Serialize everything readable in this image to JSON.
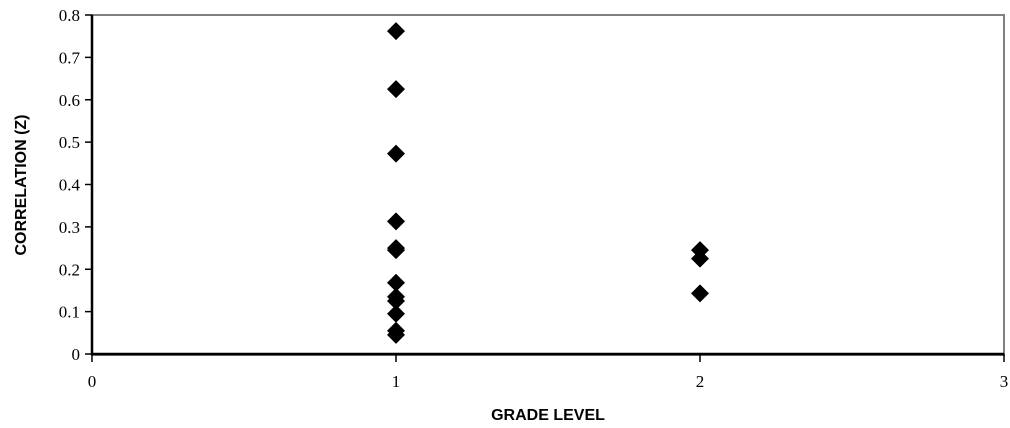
{
  "chart_data": {
    "type": "scatter",
    "title": "",
    "xlabel": "GRADE LEVEL",
    "ylabel": "CORRELATION (Z)",
    "xlim": [
      0,
      3
    ],
    "ylim": [
      0,
      0.8
    ],
    "x_ticks": [
      0,
      1,
      2,
      3
    ],
    "y_ticks": [
      0,
      0.1,
      0.2,
      0.3,
      0.4,
      0.5,
      0.6,
      0.7,
      0.8
    ],
    "grid": false,
    "legend": "none",
    "marker": "diamond",
    "marker_color": "#000000",
    "frame_color": "#808080",
    "series": [
      {
        "points": [
          {
            "x": 1,
            "y": 0.762
          },
          {
            "x": 1,
            "y": 0.625
          },
          {
            "x": 1,
            "y": 0.473
          },
          {
            "x": 1,
            "y": 0.313
          },
          {
            "x": 1,
            "y": 0.25
          },
          {
            "x": 1,
            "y": 0.245
          },
          {
            "x": 1,
            "y": 0.168
          },
          {
            "x": 1,
            "y": 0.135
          },
          {
            "x": 1,
            "y": 0.125
          },
          {
            "x": 1,
            "y": 0.095
          },
          {
            "x": 1,
            "y": 0.055
          },
          {
            "x": 1,
            "y": 0.045
          },
          {
            "x": 2,
            "y": 0.245
          },
          {
            "x": 2,
            "y": 0.225
          },
          {
            "x": 2,
            "y": 0.143
          }
        ]
      }
    ]
  }
}
